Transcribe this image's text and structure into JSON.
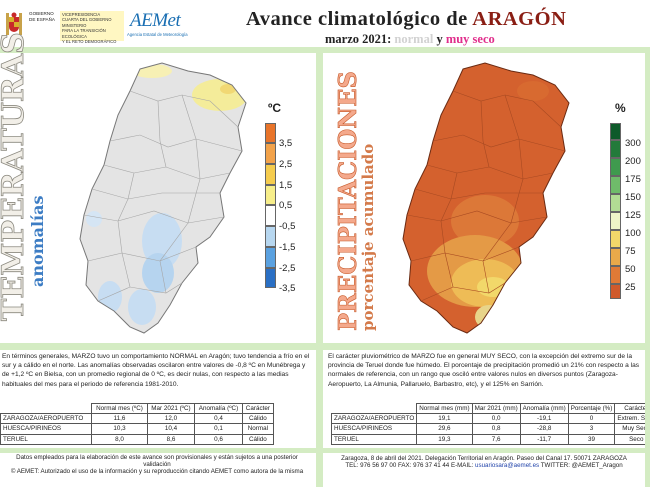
{
  "header": {
    "gov_text": "GOBIERNO DE ESPAÑA",
    "gov_band": [
      "VICEPRESIDENCIA",
      "CUARTA DEL GOBIERNO",
      "MINISTERIO",
      "PARA LA TRANSICIÓN ECOLÓGICA",
      "Y EL RETO DEMOGRÁFICO"
    ],
    "aemet_name": "AEMet",
    "aemet_subtitle": "Agencia Estatal de Meteorología",
    "title_prefix": "Avance climatológico de ",
    "title_region": "ARAGÓN",
    "subtitle_period": "marzo 2021: ",
    "subtitle_normal": "normal",
    "subtitle_joiner": " y ",
    "subtitle_seco": "muy seco"
  },
  "temperature": {
    "vertical_title": "TEMPERATURAS",
    "vertical_subtitle": "anomalías",
    "legend_unit": "ºC",
    "legend": [
      {
        "label": "3,5",
        "color": "#e8742a"
      },
      {
        "label": "2,5",
        "color": "#f2a24a"
      },
      {
        "label": "1,5",
        "color": "#f5cc4e"
      },
      {
        "label": "0,5",
        "color": "#f7ee8a"
      },
      {
        "label": "-0,5",
        "color": "#ffffff"
      },
      {
        "label": "-1,5",
        "color": "#b7d7f0"
      },
      {
        "label": "-2,5",
        "color": "#5aa1e0"
      },
      {
        "label": "-3,5",
        "color": "#2a6fc4"
      }
    ],
    "text": "En términos generales, MARZO tuvo un comportamiento NORMAL en Aragón; tuvo tendencia a frío en el sur y a cálido en el norte. Las anomalías observadas oscilaron entre valores de -0,8 ºC en Munébrega y de +1,2 ºC en Bielsa, con un promedio regional de 0 ºC, es decir nulas, con respecto a las medias habituales del mes para el periodo de referencia 1981-2010.",
    "table": {
      "headers": [
        "",
        "Normal mes (ºC)",
        "Mar 2021 (ºC)",
        "Anomalía (ºC)",
        "Carácter"
      ],
      "rows": [
        [
          "ZARAGOZA/AEROPUERTO",
          "11,6",
          "12,0",
          "0,4",
          "Cálido"
        ],
        [
          "HUESCA/PIRINEOS",
          "10,3",
          "10,4",
          "0,1",
          "Normal"
        ],
        [
          "TERUEL",
          "8,0",
          "8,6",
          "0,6",
          "Cálido"
        ]
      ]
    }
  },
  "precipitation": {
    "vertical_title": "PRECIPITACIONES",
    "vertical_subtitle": "porcentaje acumulado",
    "legend_unit": "%",
    "legend": [
      {
        "label": "300",
        "color": "#0e5a2a"
      },
      {
        "label": "200",
        "color": "#237a3a"
      },
      {
        "label": "175",
        "color": "#3f9a4e"
      },
      {
        "label": "150",
        "color": "#6fbb6a"
      },
      {
        "label": "125",
        "color": "#b2dc94"
      },
      {
        "label": "100",
        "color": "#eef5c8"
      },
      {
        "label": "75",
        "color": "#f2d86a"
      },
      {
        "label": "50",
        "color": "#e9a94a"
      },
      {
        "label": "25",
        "color": "#e07a36"
      },
      {
        "label": "",
        "color": "#cf5a2c"
      }
    ],
    "text": "El carácter pluviométrico de MARZO fue en general MUY SECO, con la excepción del extremo sur de la provincia de Teruel donde fue húmedo. El porcentaje de precipitación promedió un 21% con respecto a las normales de referencia, con un rango que osciló entre valores nulos en diversos puntos (Zaragoza-Aeropuerto, La Almunia, Pallaruelo, Barbastro, etc), y el 125% en Sarrión.",
    "table": {
      "headers": [
        "",
        "Normal mes (mm)",
        "Mar 2021 (mm)",
        "Anomalía (mm)",
        "Porcentaje (%)",
        "Carácter"
      ],
      "rows": [
        [
          "ZARAGOZA/AEROPUERTO",
          "19,1",
          "0,0",
          "-19,1",
          "0",
          "Extrem. Seco"
        ],
        [
          "HUESCA/PIRINEOS",
          "29,6",
          "0,8",
          "-28,8",
          "3",
          "Muy Seco"
        ],
        [
          "TERUEL",
          "19,3",
          "7,6",
          "-11,7",
          "39",
          "Seco"
        ]
      ]
    }
  },
  "footer": {
    "left_line1": "Datos empleados para la elaboración de este avance son provisionales y están sujetos a una posterior validación",
    "left_line2": "© AEMET: Autorizado el uso de la información y su reproducción citando AEMET como autora de la misma",
    "right_line1": "Zaragoza, 8 de abril del 2021. Delegación Territorial en Aragón. Paseo del Canal 17. 50071 ZARAGOZA",
    "right_line2_prefix": "TEL: 976 56 97 00  FAX: 976 37 41 44  E-MAIL: ",
    "right_email": "usuariosara@aemet.es",
    "right_line2_suffix": "  TWITTER: @AEMET_Aragon"
  }
}
